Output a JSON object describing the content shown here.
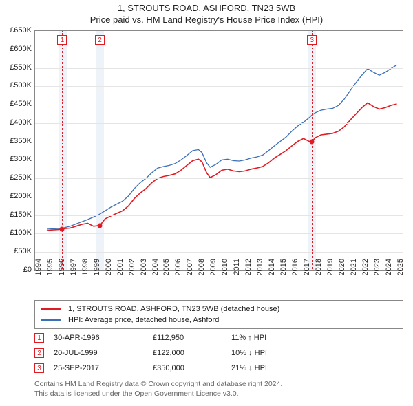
{
  "title_line1": "1, STROUTS ROAD, ASHFORD, TN23 5WB",
  "title_line2": "Price paid vs. HM Land Registry's House Price Index (HPI)",
  "chart": {
    "type": "line",
    "x_min": 1994,
    "x_max": 2025.5,
    "x_ticks": [
      1994,
      1995,
      1996,
      1997,
      1998,
      1999,
      2000,
      2001,
      2002,
      2003,
      2004,
      2005,
      2006,
      2007,
      2008,
      2009,
      2010,
      2011,
      2012,
      2013,
      2014,
      2015,
      2016,
      2017,
      2018,
      2019,
      2020,
      2021,
      2022,
      2023,
      2024,
      2025
    ],
    "y_min": 0,
    "y_max": 650000,
    "y_ticks": [
      0,
      50000,
      100000,
      150000,
      200000,
      250000,
      300000,
      350000,
      400000,
      450000,
      500000,
      550000,
      600000,
      650000
    ],
    "y_tick_labels": [
      "£0",
      "£50K",
      "£100K",
      "£150K",
      "£200K",
      "£250K",
      "£300K",
      "£350K",
      "£400K",
      "£450K",
      "£500K",
      "£550K",
      "£600K",
      "£650K"
    ],
    "grid_color": "#e5e5e5",
    "background": "#ffffff",
    "series": [
      {
        "name": "property",
        "label": "1, STROUTS ROAD, ASHFORD, TN23 5WB (detached house)",
        "color": "#e11b22",
        "width": 1.6,
        "points": [
          [
            1995.0,
            108000
          ],
          [
            1995.5,
            110000
          ],
          [
            1996.0,
            111000
          ],
          [
            1996.33,
            112950
          ],
          [
            1997.0,
            115000
          ],
          [
            1997.5,
            120000
          ],
          [
            1998.0,
            125000
          ],
          [
            1998.5,
            128000
          ],
          [
            1999.0,
            120000
          ],
          [
            1999.55,
            122000
          ],
          [
            2000.0,
            140000
          ],
          [
            2000.5,
            148000
          ],
          [
            2001.0,
            155000
          ],
          [
            2001.5,
            162000
          ],
          [
            2002.0,
            175000
          ],
          [
            2002.5,
            195000
          ],
          [
            2003.0,
            210000
          ],
          [
            2003.5,
            222000
          ],
          [
            2004.0,
            238000
          ],
          [
            2004.5,
            250000
          ],
          [
            2005.0,
            255000
          ],
          [
            2005.5,
            258000
          ],
          [
            2006.0,
            262000
          ],
          [
            2006.5,
            272000
          ],
          [
            2007.0,
            285000
          ],
          [
            2007.5,
            298000
          ],
          [
            2008.0,
            302000
          ],
          [
            2008.3,
            295000
          ],
          [
            2008.7,
            265000
          ],
          [
            2009.0,
            252000
          ],
          [
            2009.5,
            260000
          ],
          [
            2010.0,
            272000
          ],
          [
            2010.5,
            275000
          ],
          [
            2011.0,
            270000
          ],
          [
            2011.5,
            268000
          ],
          [
            2012.0,
            270000
          ],
          [
            2012.5,
            275000
          ],
          [
            2013.0,
            278000
          ],
          [
            2013.5,
            282000
          ],
          [
            2014.0,
            292000
          ],
          [
            2014.5,
            305000
          ],
          [
            2015.0,
            315000
          ],
          [
            2015.5,
            325000
          ],
          [
            2016.0,
            338000
          ],
          [
            2016.5,
            350000
          ],
          [
            2017.0,
            358000
          ],
          [
            2017.5,
            350000
          ],
          [
            2017.73,
            350000
          ],
          [
            2018.0,
            360000
          ],
          [
            2018.5,
            368000
          ],
          [
            2019.0,
            370000
          ],
          [
            2019.5,
            372000
          ],
          [
            2020.0,
            378000
          ],
          [
            2020.5,
            390000
          ],
          [
            2021.0,
            408000
          ],
          [
            2021.5,
            425000
          ],
          [
            2022.0,
            442000
          ],
          [
            2022.5,
            455000
          ],
          [
            2023.0,
            445000
          ],
          [
            2023.5,
            438000
          ],
          [
            2024.0,
            442000
          ],
          [
            2024.5,
            448000
          ],
          [
            2025.0,
            452000
          ]
        ]
      },
      {
        "name": "hpi",
        "label": "HPI: Average price, detached house, Ashford",
        "color": "#3b6fb6",
        "width": 1.3,
        "points": [
          [
            1995.0,
            112000
          ],
          [
            1995.5,
            113000
          ],
          [
            1996.0,
            114000
          ],
          [
            1996.5,
            116000
          ],
          [
            1997.0,
            120000
          ],
          [
            1997.5,
            126000
          ],
          [
            1998.0,
            132000
          ],
          [
            1998.5,
            138000
          ],
          [
            1999.0,
            145000
          ],
          [
            1999.5,
            152000
          ],
          [
            2000.0,
            162000
          ],
          [
            2000.5,
            172000
          ],
          [
            2001.0,
            180000
          ],
          [
            2001.5,
            188000
          ],
          [
            2002.0,
            202000
          ],
          [
            2002.5,
            222000
          ],
          [
            2003.0,
            238000
          ],
          [
            2003.5,
            250000
          ],
          [
            2004.0,
            265000
          ],
          [
            2004.5,
            278000
          ],
          [
            2005.0,
            282000
          ],
          [
            2005.5,
            285000
          ],
          [
            2006.0,
            290000
          ],
          [
            2006.5,
            300000
          ],
          [
            2007.0,
            312000
          ],
          [
            2007.5,
            325000
          ],
          [
            2008.0,
            328000
          ],
          [
            2008.3,
            320000
          ],
          [
            2008.7,
            292000
          ],
          [
            2009.0,
            280000
          ],
          [
            2009.5,
            288000
          ],
          [
            2010.0,
            300000
          ],
          [
            2010.5,
            302000
          ],
          [
            2011.0,
            298000
          ],
          [
            2011.5,
            297000
          ],
          [
            2012.0,
            300000
          ],
          [
            2012.5,
            305000
          ],
          [
            2013.0,
            308000
          ],
          [
            2013.5,
            313000
          ],
          [
            2014.0,
            325000
          ],
          [
            2014.5,
            338000
          ],
          [
            2015.0,
            350000
          ],
          [
            2015.5,
            362000
          ],
          [
            2016.0,
            378000
          ],
          [
            2016.5,
            392000
          ],
          [
            2017.0,
            402000
          ],
          [
            2017.5,
            415000
          ],
          [
            2017.73,
            422000
          ],
          [
            2018.0,
            428000
          ],
          [
            2018.5,
            435000
          ],
          [
            2019.0,
            438000
          ],
          [
            2019.5,
            440000
          ],
          [
            2020.0,
            448000
          ],
          [
            2020.5,
            465000
          ],
          [
            2021.0,
            488000
          ],
          [
            2021.5,
            510000
          ],
          [
            2022.0,
            530000
          ],
          [
            2022.5,
            548000
          ],
          [
            2023.0,
            538000
          ],
          [
            2023.5,
            530000
          ],
          [
            2024.0,
            538000
          ],
          [
            2024.5,
            548000
          ],
          [
            2025.0,
            558000
          ]
        ]
      }
    ],
    "markers": [
      {
        "num": "1",
        "x": 1996.33,
        "color": "#e11b22",
        "band": {
          "from": 1996.0,
          "to": 1996.7
        },
        "dot_y": 112950,
        "box_top": 6
      },
      {
        "num": "2",
        "x": 1999.55,
        "color": "#e11b22",
        "band": {
          "from": 1999.2,
          "to": 1999.9
        },
        "dot_y": 122000,
        "box_top": 6
      },
      {
        "num": "3",
        "x": 2017.73,
        "color": "#e11b22",
        "band": {
          "from": 2017.4,
          "to": 2018.05
        },
        "dot_y": 350000,
        "box_top": 6
      }
    ]
  },
  "legend": [
    {
      "color": "#e11b22",
      "label": "1, STROUTS ROAD, ASHFORD, TN23 5WB (detached house)"
    },
    {
      "color": "#3b6fb6",
      "label": "HPI: Average price, detached house, Ashford"
    }
  ],
  "sales": [
    {
      "num": "1",
      "color": "#e11b22",
      "date": "30-APR-1996",
      "price": "£112,950",
      "pct": "11% ↑ HPI"
    },
    {
      "num": "2",
      "color": "#e11b22",
      "date": "20-JUL-1999",
      "price": "£122,000",
      "pct": "10% ↓ HPI"
    },
    {
      "num": "3",
      "color": "#e11b22",
      "date": "25-SEP-2017",
      "price": "£350,000",
      "pct": "21% ↓ HPI"
    }
  ],
  "footer_line1": "Contains HM Land Registry data © Crown copyright and database right 2024.",
  "footer_line2": "This data is licensed under the Open Government Licence v3.0."
}
